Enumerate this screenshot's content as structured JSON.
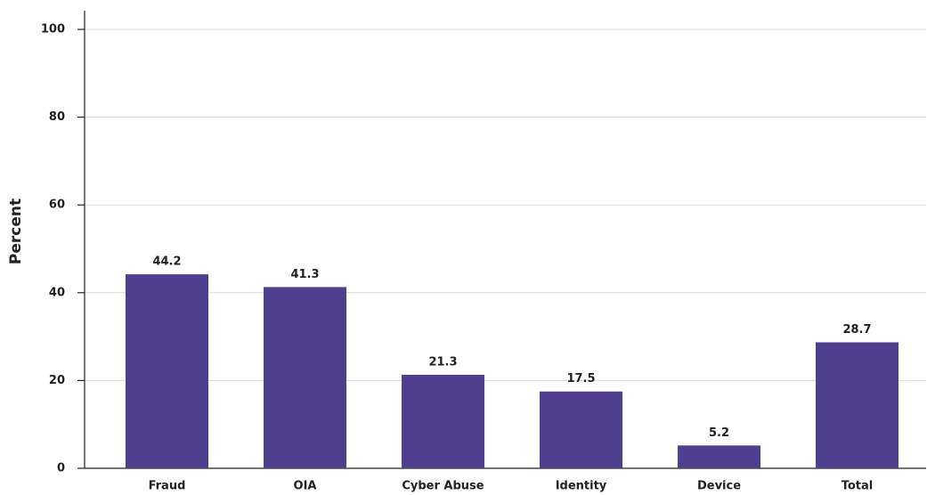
{
  "chart_data": {
    "type": "bar",
    "y_label": "Percent",
    "categories": [
      "Fraud",
      "OIA",
      "Cyber Abuse",
      "Identity",
      "Device",
      "Total"
    ],
    "values": [
      44.2,
      41.3,
      21.3,
      17.5,
      5.2,
      28.7
    ],
    "color": "#4f3f8f",
    "ylim": [
      0,
      100
    ],
    "yticks": [
      0,
      20,
      40,
      60,
      80,
      100
    ],
    "grid": true
  }
}
